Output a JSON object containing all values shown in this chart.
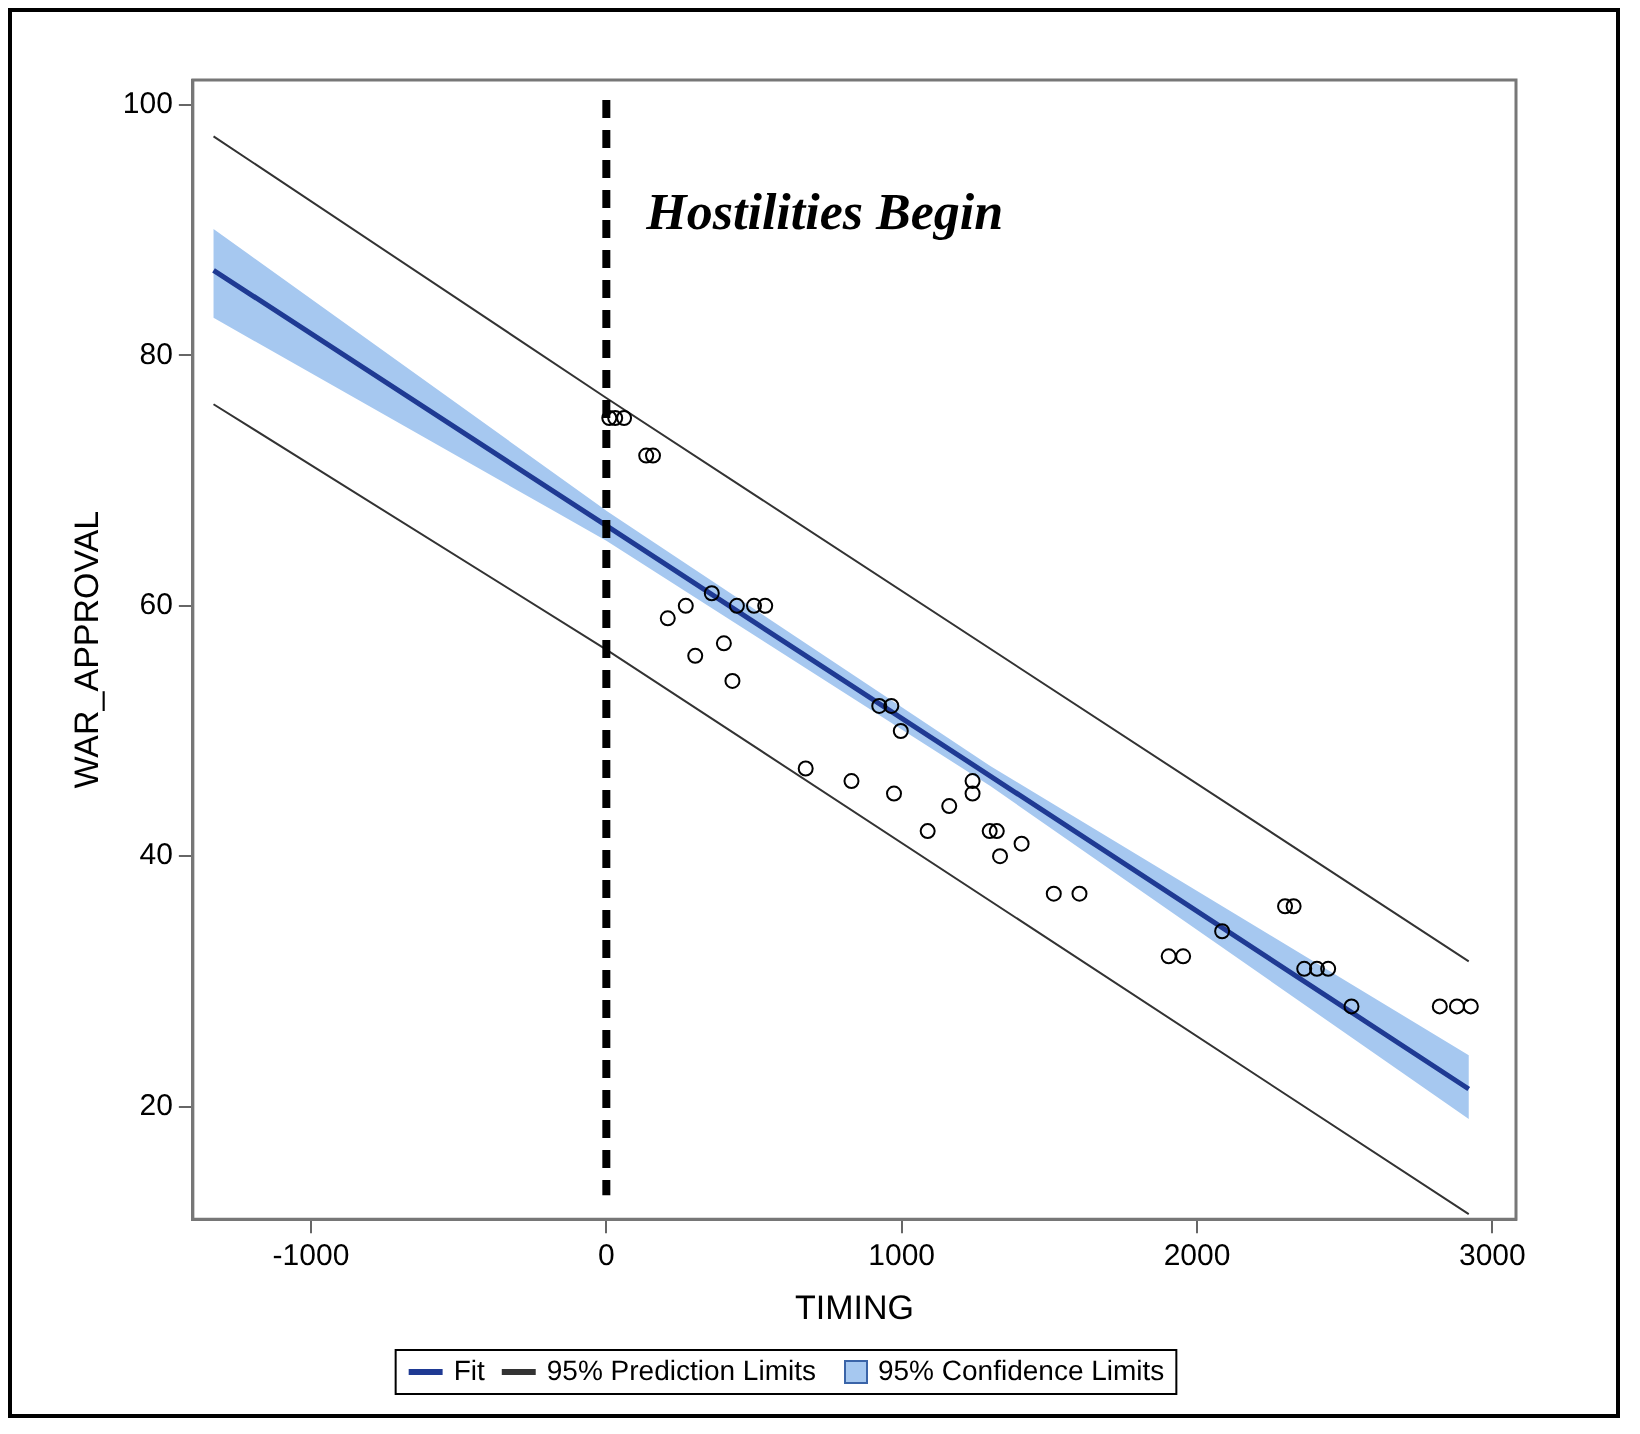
{
  "chart_data": {
    "type": "scatter",
    "xlabel": "TIMING",
    "ylabel": "WAR_APPROVAL",
    "xlim": [
      -1400,
      3080
    ],
    "ylim": [
      11,
      102
    ],
    "xticks": [
      -1000,
      0,
      1000,
      2000,
      3000
    ],
    "yticks": [
      20,
      40,
      60,
      80,
      100
    ],
    "grid": false,
    "legend": "bottom",
    "annotations": [
      "95% Confidence Limits"
    ],
    "series": [
      {
        "type": "line",
        "name": "Fit",
        "color": "#1f3a93",
        "marker": "none",
        "x": [
          -1330,
          0,
          1300,
          2920
        ],
        "values": [
          86.8,
          66.4,
          46.4,
          21.4
        ],
        "lower": [
          83.0,
          65.2,
          45.6,
          19.0
        ],
        "upper": [
          90.1,
          67.6,
          47.2,
          24.1
        ]
      },
      {
        "type": "line",
        "name": "95% Prediction Limits",
        "color": "#333333",
        "marker": "none",
        "x": [
          -1330,
          0,
          2920
        ],
        "values": [
          97.5,
          76.6,
          31.6
        ]
      },
      {
        "type": "line",
        "color": "#333333",
        "marker": "none",
        "x": [
          -1330,
          0,
          2920
        ],
        "values": [
          76.1,
          56.5,
          11.4
        ]
      },
      {
        "color": "#000000",
        "marker": "circle",
        "x": [
          10,
          30,
          60,
          135,
          158,
          208,
          269,
          301,
          357,
          398,
          427,
          442,
          500,
          538,
          675,
          830,
          974,
          924,
          965,
          997,
          1088,
          1161,
          1240,
          1240,
          1298,
          1322,
          1333,
          1406,
          1515,
          1602,
          1904,
          1953,
          2085,
          2298,
          2327,
          2363,
          2406,
          2444,
          2523,
          2822,
          2880,
          2927
        ],
        "values": [
          75,
          75,
          75,
          72,
          72,
          59,
          60,
          56,
          61,
          57,
          54,
          60,
          60,
          60,
          47,
          46,
          45,
          52,
          52,
          50,
          42,
          44,
          46,
          45,
          42,
          42,
          40,
          41,
          37,
          37,
          32,
          32,
          34,
          36,
          36,
          31,
          31,
          31,
          28,
          28,
          28,
          28
        ]
      }
    ],
    "ref_lines": [
      {
        "axis": "x",
        "value": 0,
        "label": "Hostilities Begin",
        "line_style": "dashed",
        "color": "#000000"
      }
    ]
  }
}
